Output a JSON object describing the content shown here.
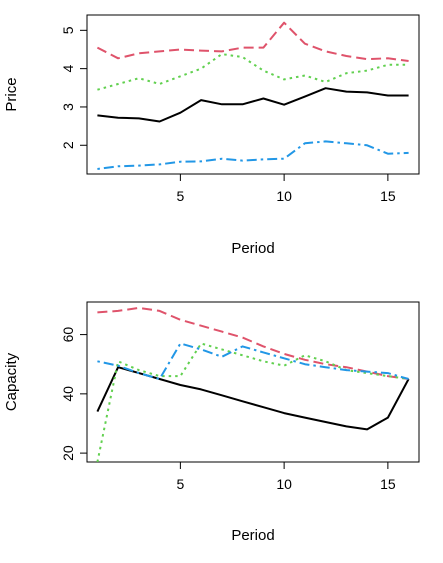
{
  "chart_data": [
    {
      "type": "line",
      "xlabel": "Period",
      "ylabel": "Price",
      "xlim": [
        0.5,
        16.5
      ],
      "ylim": [
        1.25,
        5.4
      ],
      "xticks": [
        "5",
        "10",
        "15"
      ],
      "xtick_values": [
        5,
        10,
        15
      ],
      "yticks": [
        "2",
        "3",
        "4",
        "5"
      ],
      "ytick_values": [
        2,
        3,
        4,
        5
      ],
      "grid": false,
      "x": [
        1,
        2,
        3,
        4,
        5,
        6,
        7,
        8,
        9,
        10,
        11,
        12,
        13,
        14,
        15,
        16
      ],
      "series": [
        {
          "color": "#000000",
          "dash": "solid",
          "values": [
            2.78,
            2.72,
            2.7,
            2.62,
            2.85,
            3.18,
            3.07,
            3.07,
            3.22,
            3.06,
            3.27,
            3.49,
            3.4,
            3.38,
            3.3,
            3.3
          ]
        },
        {
          "color": "#DF536B",
          "dash": "dashed",
          "values": [
            4.55,
            4.27,
            4.4,
            4.45,
            4.5,
            4.47,
            4.45,
            4.55,
            4.55,
            5.2,
            4.65,
            4.45,
            4.33,
            4.25,
            4.27,
            4.2
          ]
        },
        {
          "color": "#61D04F",
          "dash": "dotted",
          "values": [
            3.45,
            3.6,
            3.75,
            3.6,
            3.8,
            4.0,
            4.38,
            4.3,
            3.95,
            3.72,
            3.82,
            3.65,
            3.88,
            3.95,
            4.1,
            4.1
          ]
        },
        {
          "color": "#2297E6",
          "dash": "dotdash",
          "values": [
            1.38,
            1.45,
            1.47,
            1.5,
            1.57,
            1.58,
            1.65,
            1.6,
            1.63,
            1.65,
            2.05,
            2.1,
            2.05,
            2.0,
            1.78,
            1.8
          ]
        }
      ]
    },
    {
      "type": "line",
      "xlabel": "Period",
      "ylabel": "Capacity",
      "xlim": [
        0.5,
        16.5
      ],
      "ylim": [
        17,
        71
      ],
      "xticks": [
        "5",
        "10",
        "15"
      ],
      "xtick_values": [
        5,
        10,
        15
      ],
      "yticks": [
        "20",
        "40",
        "60"
      ],
      "ytick_values": [
        20,
        40,
        60
      ],
      "grid": false,
      "x": [
        1,
        2,
        3,
        4,
        5,
        6,
        7,
        8,
        9,
        10,
        11,
        12,
        13,
        14,
        15,
        16
      ],
      "series": [
        {
          "color": "#000000",
          "dash": "solid",
          "values": [
            34,
            49,
            47,
            45,
            43,
            41.5,
            39.5,
            37.5,
            35.5,
            33.5,
            32,
            30.5,
            29,
            28,
            32,
            45
          ]
        },
        {
          "color": "#DF536B",
          "dash": "dashed",
          "values": [
            67.5,
            68,
            69,
            68,
            65,
            63,
            61,
            59,
            56,
            53.5,
            51.5,
            50,
            49,
            47.5,
            46,
            45
          ]
        },
        {
          "color": "#61D04F",
          "dash": "dotted",
          "values": [
            17,
            51,
            48,
            46,
            46,
            57,
            55,
            53,
            51,
            49.5,
            53,
            51,
            48,
            47,
            46,
            45
          ]
        },
        {
          "color": "#2297E6",
          "dash": "dotdash",
          "values": [
            51,
            49.5,
            47,
            45,
            57,
            55,
            52.5,
            56,
            54,
            52,
            50,
            49,
            48,
            47.5,
            47,
            45
          ]
        }
      ]
    }
  ]
}
